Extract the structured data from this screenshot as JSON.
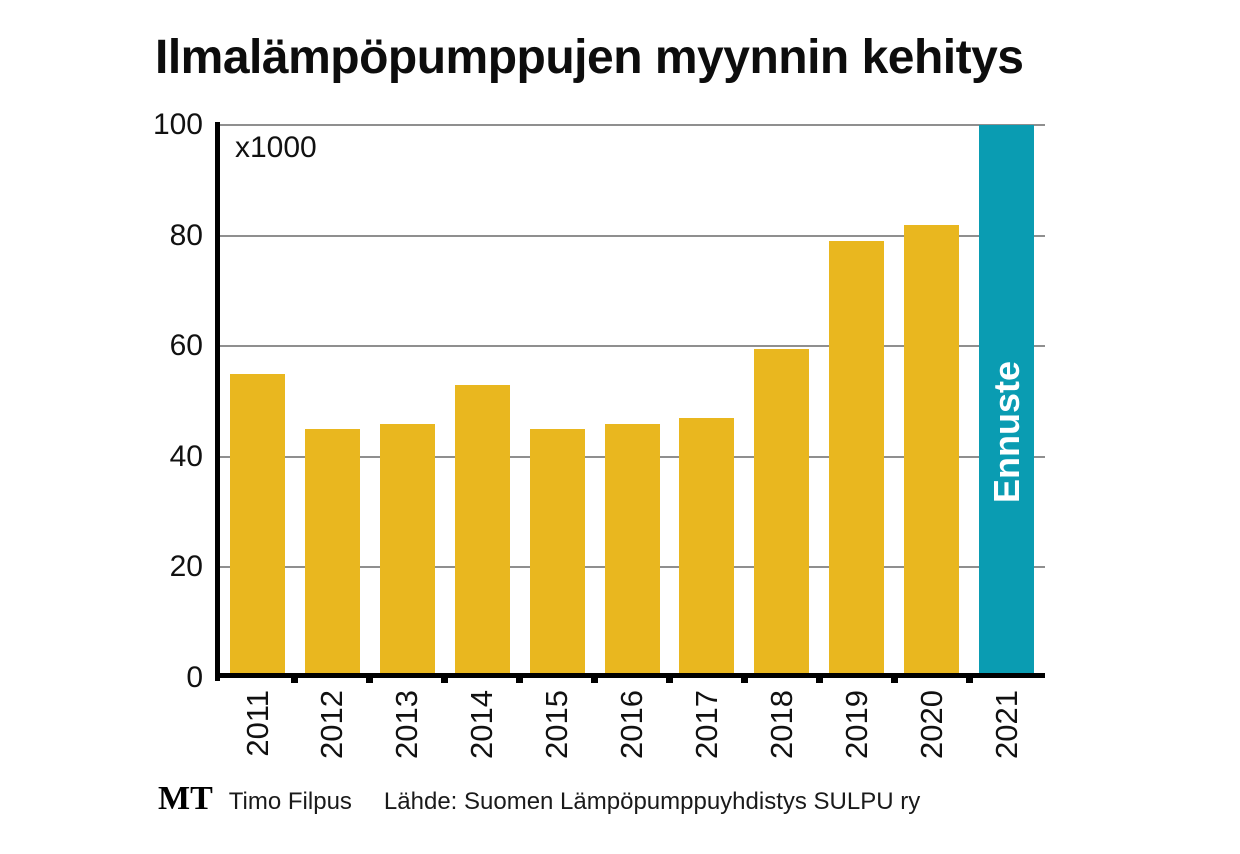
{
  "title": "Ilmalämpöpumppujen myynnin kehitys",
  "chart_data": {
    "type": "bar",
    "title": "Ilmalämpöpumppujen myynnin kehitys",
    "unit_label": "x1000",
    "categories": [
      "2011",
      "2012",
      "2013",
      "2014",
      "2015",
      "2016",
      "2017",
      "2018",
      "2019",
      "2020",
      "2021"
    ],
    "values": [
      55,
      45,
      46,
      53,
      45,
      46,
      47,
      59.5,
      79,
      82,
      100
    ],
    "xlabel": "",
    "ylabel": "",
    "ylim": [
      0,
      100
    ],
    "yticks": [
      0,
      20,
      40,
      60,
      80,
      100
    ],
    "grid": true,
    "legend": "none",
    "bar_color": "#e9b71f",
    "grid_color": "#8f8f8f",
    "axis_color": "#000000",
    "forecast": {
      "index": 10,
      "label": "Ennuste",
      "bar_color": "#0a9cb2",
      "label_color": "#ffffff"
    }
  },
  "footer": {
    "logo": "MT",
    "author": "Timo Filpus",
    "source": "Lähde: Suomen Lämpöpumppuyhdistys SULPU ry"
  }
}
